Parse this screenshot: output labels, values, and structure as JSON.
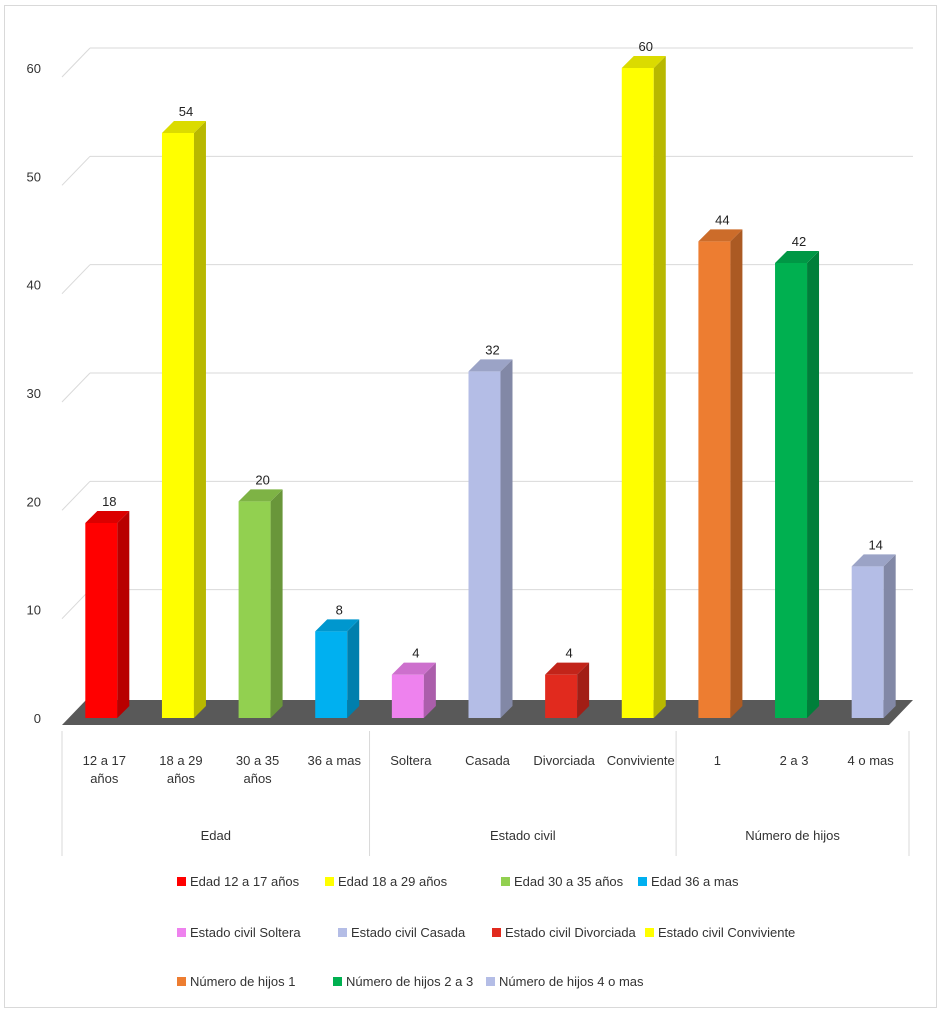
{
  "chart_data": {
    "type": "bar",
    "groups": [
      {
        "name": "Edad",
        "categories": [
          "12 a 17 años",
          "18 a 29 años",
          "30 a 35 años",
          "36 a mas"
        ]
      },
      {
        "name": "Estado civil",
        "categories": [
          "Soltera",
          "Casada",
          "Divorciada",
          "Conviviente"
        ]
      },
      {
        "name": "Número de hijos",
        "categories": [
          "1",
          "2 a 3",
          "4 o mas"
        ]
      }
    ],
    "categories": [
      "12 a 17 años",
      "18 a 29 años",
      "30 a 35 años",
      "36 a mas",
      "Soltera",
      "Casada",
      "Divorciada",
      "Conviviente",
      "1",
      "2 a 3",
      "4 o mas"
    ],
    "values": [
      18,
      54,
      20,
      8,
      4,
      32,
      4,
      60,
      44,
      42,
      14
    ],
    "colors": [
      "#ff0000",
      "#ffff00",
      "#92d050",
      "#00b0f0",
      "#ee82ee",
      "#b4bde6",
      "#e12a1e",
      "#ffff00",
      "#ed7d31",
      "#00b050",
      "#b4bde6"
    ],
    "ylim": [
      0,
      60
    ],
    "yticks": [
      0,
      10,
      20,
      30,
      40,
      50,
      60
    ],
    "grid": true,
    "legend_position": "bottom",
    "legend": [
      [
        "Edad 12 a 17 años",
        "Edad 18 a 29 años",
        "Edad 30 a 35 años",
        "Edad 36 a mas"
      ],
      [
        "Estado civil Soltera",
        "Estado civil Casada",
        "Estado civil Divorciada",
        "Estado civil Conviviente"
      ],
      [
        "Número de hijos 1",
        "Número de hijos 2 a 3",
        "Número de hijos 4 o mas"
      ]
    ]
  }
}
